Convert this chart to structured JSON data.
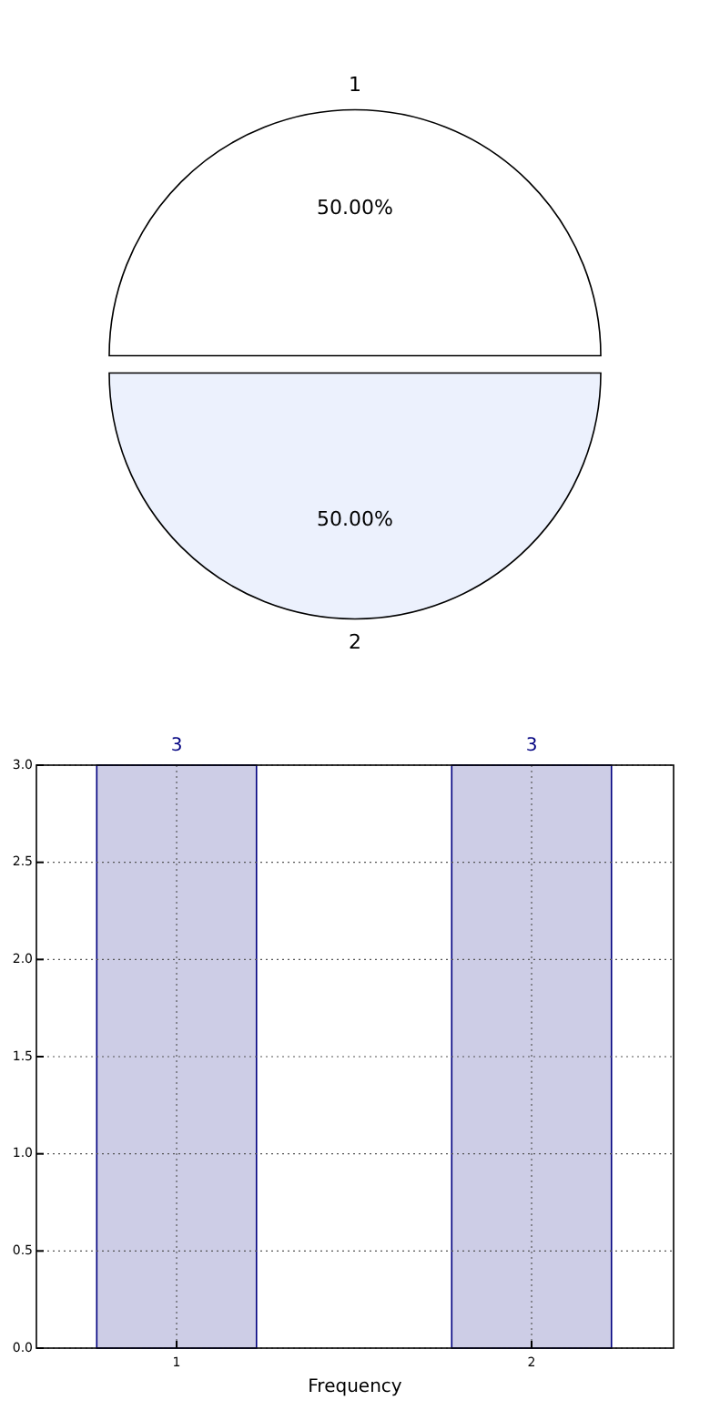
{
  "chart_data": [
    {
      "type": "pie",
      "categories": [
        "1",
        "2"
      ],
      "values": [
        50,
        50
      ],
      "colors": [
        "#ffffff",
        "#ecf1fd"
      ],
      "value_labels": [
        "50.00%",
        "50.00%"
      ]
    },
    {
      "type": "bar",
      "categories": [
        "1",
        "2"
      ],
      "values": [
        3,
        3
      ],
      "color": "#cdcde6",
      "xlabel": "Frequency",
      "ylim": [
        0,
        3
      ],
      "yticks": [
        {
          "value": 0,
          "label": "0.0"
        },
        {
          "value": 0.5,
          "label": "0.5"
        },
        {
          "value": 1,
          "label": "1.0"
        },
        {
          "value": 1.5,
          "label": "1.5"
        },
        {
          "value": 2,
          "label": "2.0"
        },
        {
          "value": 2.5,
          "label": "2.5"
        },
        {
          "value": 3,
          "label": "3.0"
        }
      ],
      "grid": true,
      "data_labels": true
    }
  ]
}
